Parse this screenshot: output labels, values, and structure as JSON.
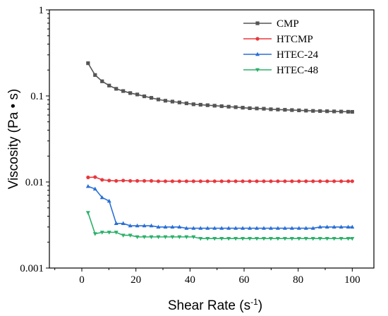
{
  "chart_data": {
    "type": "line",
    "xlabel": "Shear Rate (s",
    "xlabel_sup": "-1",
    "xlabel_close": ")",
    "ylabel": "Viscosity (Pa • s)",
    "xlim": [
      -12,
      108
    ],
    "ylim": [
      0.001,
      1
    ],
    "y_scale": "log",
    "grid": false,
    "legend_position": "top-right",
    "x_ticks": [
      0,
      20,
      40,
      60,
      80,
      100
    ],
    "y_ticks": [
      {
        "value": 0.001,
        "label": "0.001"
      },
      {
        "value": 0.01,
        "label": "0.01"
      },
      {
        "value": 0.1,
        "label": "0.1"
      },
      {
        "value": 1,
        "label": "1"
      }
    ],
    "x": [
      2.3,
      4.9,
      7.5,
      10.1,
      12.7,
      15.3,
      17.9,
      20.5,
      23.1,
      25.7,
      28.3,
      30.9,
      33.5,
      36.1,
      38.7,
      41.3,
      43.9,
      46.5,
      49.1,
      51.7,
      54.3,
      56.9,
      59.5,
      62.1,
      64.7,
      67.3,
      69.9,
      72.5,
      75.1,
      77.7,
      80.3,
      82.9,
      85.5,
      88.1,
      90.7,
      93.3,
      95.9,
      98.5,
      100.0
    ],
    "series": [
      {
        "name": "CMP",
        "color": "#555555",
        "marker": "square",
        "values": [
          0.24,
          0.175,
          0.148,
          0.132,
          0.121,
          0.114,
          0.108,
          0.104,
          0.099,
          0.095,
          0.091,
          0.088,
          0.086,
          0.084,
          0.082,
          0.08,
          0.079,
          0.078,
          0.077,
          0.076,
          0.075,
          0.074,
          0.073,
          0.072,
          0.0715,
          0.071,
          0.07,
          0.0695,
          0.069,
          0.0685,
          0.068,
          0.0675,
          0.067,
          0.0667,
          0.0664,
          0.0661,
          0.0658,
          0.0655,
          0.0653
        ]
      },
      {
        "name": "HTCMP",
        "color": "#e8383d",
        "marker": "circle",
        "values": [
          0.0113,
          0.0114,
          0.0106,
          0.0104,
          0.0103,
          0.0104,
          0.0103,
          0.0103,
          0.0103,
          0.0103,
          0.0102,
          0.0102,
          0.0102,
          0.0102,
          0.0102,
          0.0102,
          0.0102,
          0.0102,
          0.0102,
          0.0102,
          0.0102,
          0.0102,
          0.0102,
          0.0102,
          0.0102,
          0.0102,
          0.0102,
          0.0102,
          0.0102,
          0.0102,
          0.0102,
          0.0102,
          0.0102,
          0.0102,
          0.0102,
          0.0102,
          0.0102,
          0.0102,
          0.0102
        ]
      },
      {
        "name": "HTEC-24",
        "color": "#2a6fd6",
        "marker": "triangle-up",
        "values": [
          0.0089,
          0.0083,
          0.0066,
          0.006,
          0.0033,
          0.0033,
          0.0031,
          0.0031,
          0.0031,
          0.0031,
          0.003,
          0.003,
          0.003,
          0.003,
          0.0029,
          0.0029,
          0.0029,
          0.0029,
          0.0029,
          0.0029,
          0.0029,
          0.0029,
          0.0029,
          0.0029,
          0.0029,
          0.0029,
          0.0029,
          0.0029,
          0.0029,
          0.0029,
          0.0029,
          0.0029,
          0.0029,
          0.003,
          0.003,
          0.003,
          0.003,
          0.003,
          0.003
        ]
      },
      {
        "name": "HTEC-48",
        "color": "#2cb06a",
        "marker": "triangle-down",
        "values": [
          0.0044,
          0.0025,
          0.0026,
          0.0026,
          0.0026,
          0.0024,
          0.0024,
          0.0023,
          0.0023,
          0.0023,
          0.0023,
          0.0023,
          0.0023,
          0.0023,
          0.0023,
          0.0023,
          0.0022,
          0.0022,
          0.0022,
          0.0022,
          0.0022,
          0.0022,
          0.0022,
          0.0022,
          0.0022,
          0.0022,
          0.0022,
          0.0022,
          0.0022,
          0.0022,
          0.0022,
          0.0022,
          0.0022,
          0.0022,
          0.0022,
          0.0022,
          0.0022,
          0.0022,
          0.0022
        ]
      }
    ]
  }
}
